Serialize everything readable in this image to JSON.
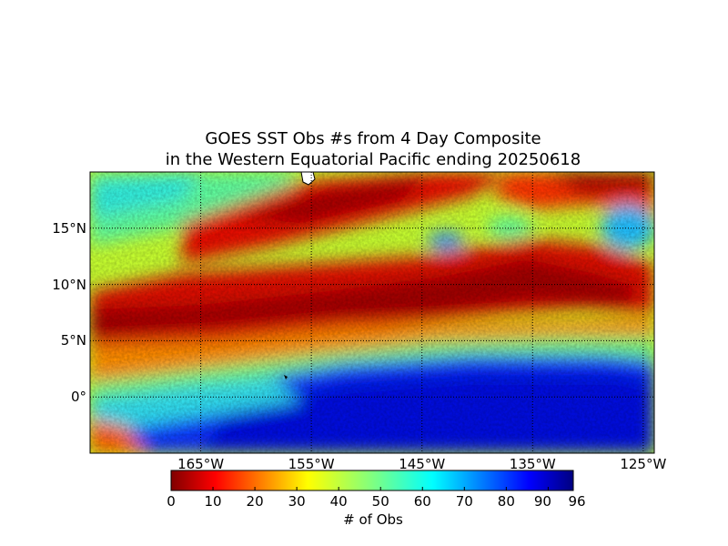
{
  "title": {
    "line1": "GOES SST Obs #s from 4 Day Composite",
    "line2": "in the Western Equatorial Pacific ending 20250618"
  },
  "map": {
    "lon_range": [
      -175,
      -124
    ],
    "lat_range": [
      -5,
      20
    ],
    "lat_ticks": [
      {
        "value": 15,
        "label": "15°N"
      },
      {
        "value": 10,
        "label": "10°N"
      },
      {
        "value": 5,
        "label": "5°N"
      },
      {
        "value": 0,
        "label": "0°"
      }
    ],
    "lon_ticks": [
      {
        "value": -165,
        "label": "165°W"
      },
      {
        "value": -155,
        "label": "155°W"
      },
      {
        "value": -145,
        "label": "145°W"
      },
      {
        "value": -135,
        "label": "135°W"
      },
      {
        "value": -125,
        "label": "125°W"
      }
    ],
    "gridlines": "dotted",
    "land_color": "#ffffff"
  },
  "colorbar": {
    "label": "# of Obs",
    "colormap": "jet",
    "min": 0,
    "max": 96,
    "ticks": [
      {
        "value": 0,
        "label": "0"
      },
      {
        "value": 10,
        "label": "10"
      },
      {
        "value": 20,
        "label": "20"
      },
      {
        "value": 30,
        "label": "30"
      },
      {
        "value": 40,
        "label": "40"
      },
      {
        "value": 50,
        "label": "50"
      },
      {
        "value": 60,
        "label": "60"
      },
      {
        "value": 70,
        "label": "70"
      },
      {
        "value": 80,
        "label": "80"
      },
      {
        "value": 90,
        "label": "90"
      },
      {
        "value": 96,
        "label": "96"
      }
    ]
  }
}
